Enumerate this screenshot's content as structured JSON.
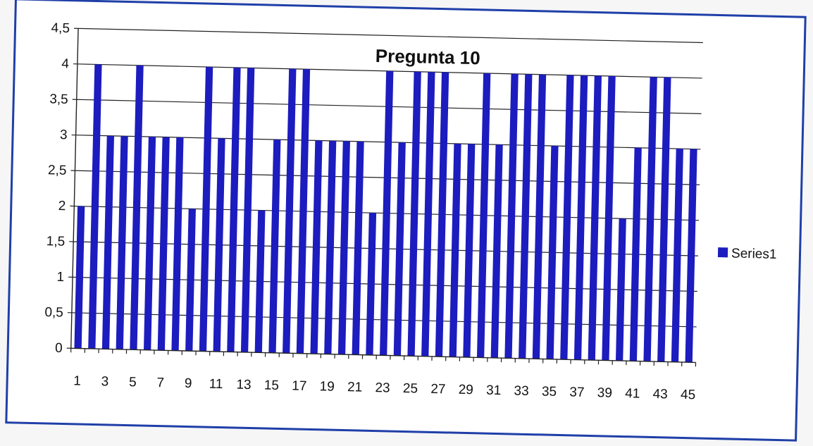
{
  "chart_data": {
    "type": "bar",
    "title": "Pregunta 10",
    "xlabel": "",
    "ylabel": "",
    "ylim": [
      0,
      4.5
    ],
    "yticks": [
      "0",
      "0,5",
      "1",
      "1,5",
      "2",
      "2,5",
      "3",
      "3,5",
      "4",
      "4,5"
    ],
    "categories": [
      "1",
      "2",
      "3",
      "4",
      "5",
      "6",
      "7",
      "8",
      "9",
      "10",
      "11",
      "12",
      "13",
      "14",
      "15",
      "16",
      "17",
      "18",
      "19",
      "20",
      "21",
      "22",
      "23",
      "24",
      "25",
      "26",
      "27",
      "28",
      "29",
      "30",
      "31",
      "32",
      "33",
      "34",
      "35",
      "36",
      "37",
      "38",
      "39",
      "40",
      "41",
      "42",
      "43",
      "44",
      "45"
    ],
    "xtick_labels_shown": [
      "1",
      "3",
      "5",
      "7",
      "9",
      "11",
      "13",
      "15",
      "17",
      "19",
      "21",
      "23",
      "25",
      "27",
      "29",
      "31",
      "33",
      "35",
      "37",
      "39",
      "41",
      "43",
      "45"
    ],
    "series": [
      {
        "name": "Series1",
        "values": [
          2,
          4,
          3,
          3,
          4,
          3,
          3,
          3,
          2,
          4,
          3,
          4,
          4,
          2,
          3,
          4,
          4,
          3,
          3,
          3,
          3,
          2,
          4,
          3,
          4,
          4,
          4,
          3,
          3,
          4,
          3,
          4,
          4,
          4,
          3,
          4,
          4,
          4,
          4,
          2,
          3,
          4,
          4,
          3,
          3
        ],
        "color": "#1c1cbf"
      }
    ],
    "grid": true,
    "legend_position": "right"
  }
}
